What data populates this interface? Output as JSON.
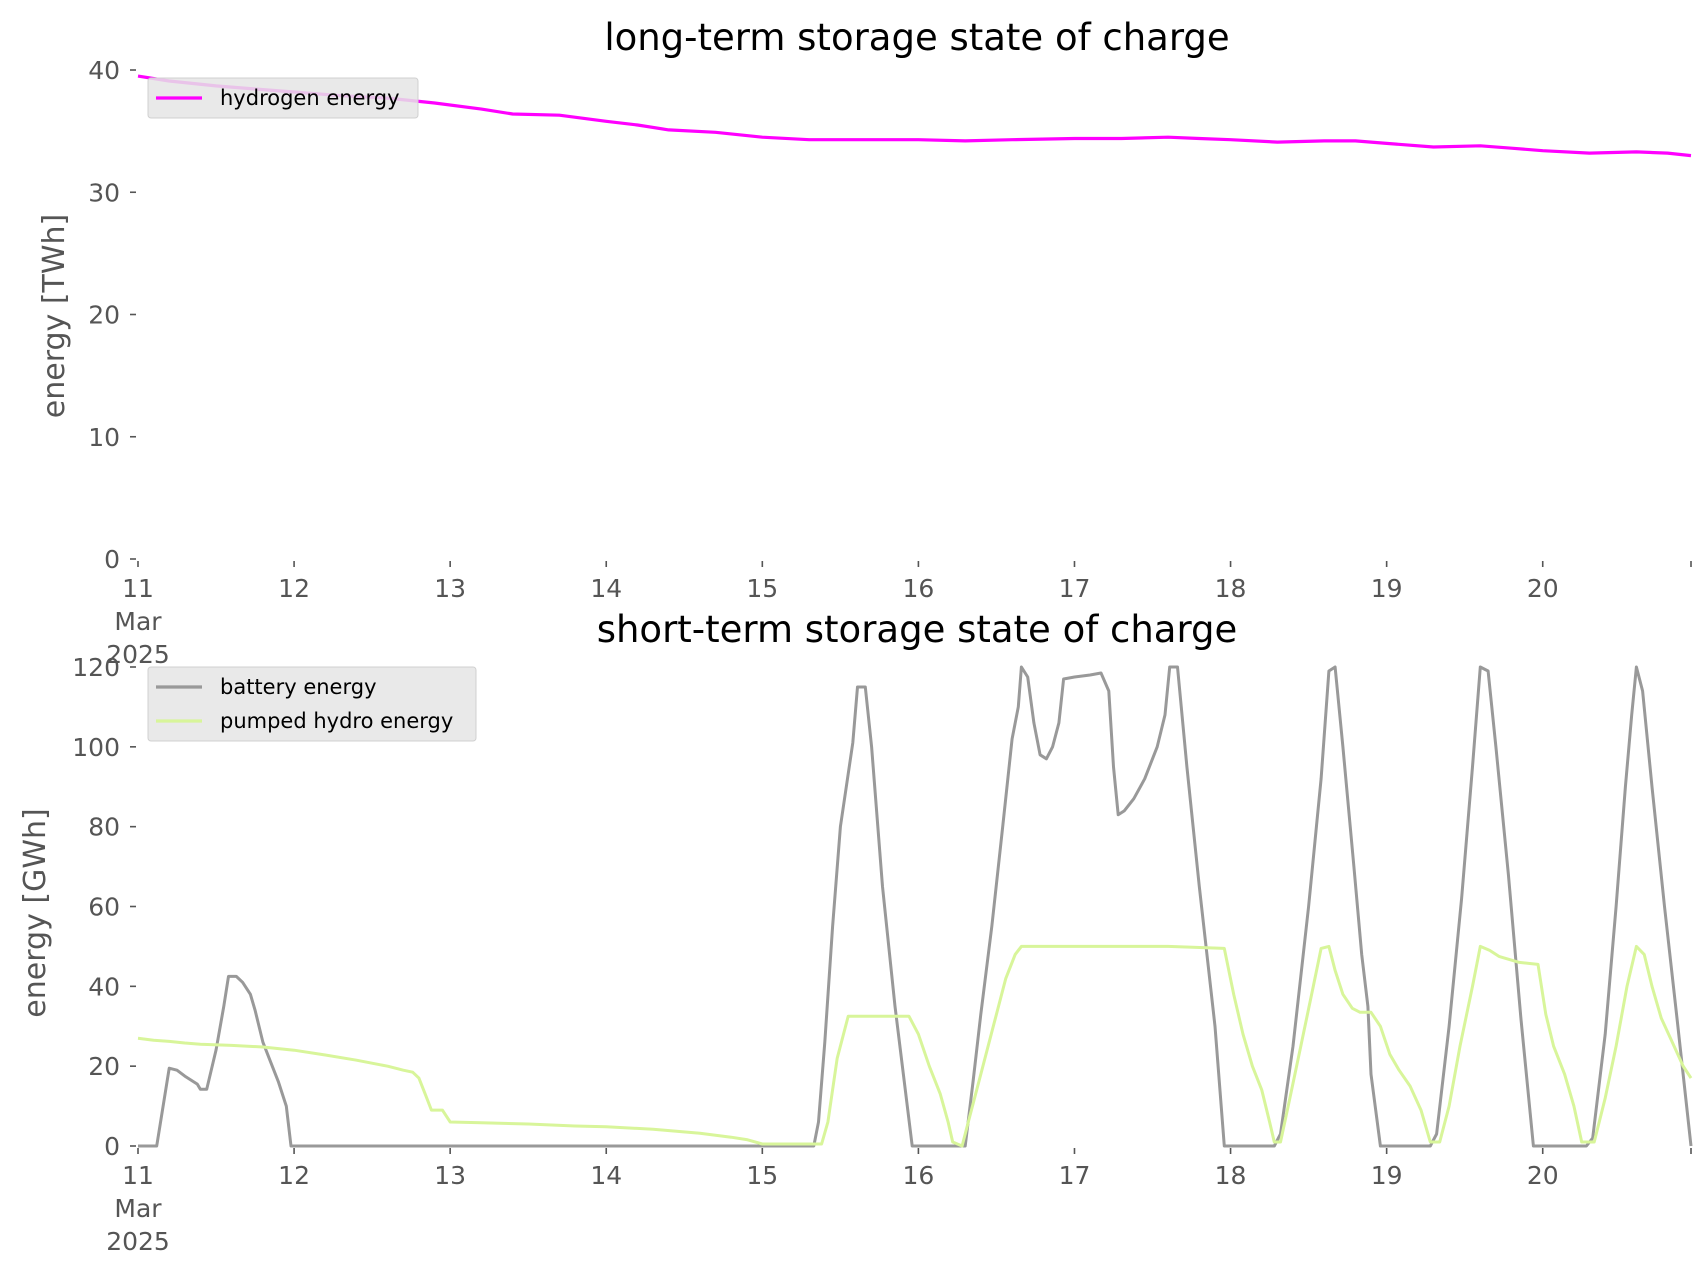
{
  "chart_data": [
    {
      "type": "line",
      "title": "long-term storage state of charge",
      "ylabel": "energy [TWh]",
      "xlabel": "",
      "ylim": [
        0,
        40
      ],
      "yticks": [
        0,
        10,
        20,
        30,
        40
      ],
      "xlim_days": [
        11,
        20.95
      ],
      "xticks": [
        {
          "day": 11,
          "lines": [
            "11",
            "Mar",
            "2025"
          ]
        },
        {
          "day": 12,
          "lines": [
            "12"
          ]
        },
        {
          "day": 13,
          "lines": [
            "13"
          ]
        },
        {
          "day": 14,
          "lines": [
            "14"
          ]
        },
        {
          "day": 15,
          "lines": [
            "15"
          ]
        },
        {
          "day": 16,
          "lines": [
            "16"
          ]
        },
        {
          "day": 17,
          "lines": [
            "17"
          ]
        },
        {
          "day": 18,
          "lines": [
            "18"
          ]
        },
        {
          "day": 19,
          "lines": [
            "19"
          ]
        },
        {
          "day": 20,
          "lines": [
            "20"
          ]
        }
      ],
      "grid": false,
      "legend_position": "top-left",
      "series": [
        {
          "name": "hydrogen energy",
          "color": "#ff00ff",
          "points": [
            [
              11.0,
              39.5
            ],
            [
              11.2,
              39.1
            ],
            [
              11.5,
              38.7
            ],
            [
              11.8,
              38.4
            ],
            [
              12.0,
              38.2
            ],
            [
              12.3,
              37.9
            ],
            [
              12.6,
              37.7
            ],
            [
              12.9,
              37.3
            ],
            [
              13.2,
              36.8
            ],
            [
              13.4,
              36.4
            ],
            [
              13.7,
              36.3
            ],
            [
              14.0,
              35.8
            ],
            [
              14.2,
              35.5
            ],
            [
              14.4,
              35.1
            ],
            [
              14.7,
              34.9
            ],
            [
              15.0,
              34.5
            ],
            [
              15.3,
              34.3
            ],
            [
              15.6,
              34.3
            ],
            [
              16.0,
              34.3
            ],
            [
              16.3,
              34.2
            ],
            [
              16.6,
              34.3
            ],
            [
              17.0,
              34.4
            ],
            [
              17.3,
              34.4
            ],
            [
              17.6,
              34.5
            ],
            [
              17.8,
              34.4
            ],
            [
              18.0,
              34.3
            ],
            [
              18.3,
              34.1
            ],
            [
              18.6,
              34.2
            ],
            [
              18.8,
              34.2
            ],
            [
              19.0,
              34.0
            ],
            [
              19.3,
              33.7
            ],
            [
              19.6,
              33.8
            ],
            [
              19.8,
              33.6
            ],
            [
              20.0,
              33.4
            ],
            [
              20.3,
              33.2
            ],
            [
              20.6,
              33.3
            ],
            [
              20.8,
              33.2
            ],
            [
              20.95,
              33.0
            ]
          ]
        }
      ]
    },
    {
      "type": "line",
      "title": "short-term storage state of charge",
      "ylabel": "energy [GWh]",
      "xlabel": "",
      "ylim": [
        0,
        120
      ],
      "yticks": [
        0,
        20,
        40,
        60,
        80,
        100,
        120
      ],
      "xlim_days": [
        11,
        20.95
      ],
      "xticks": [
        {
          "day": 11,
          "lines": [
            "11",
            "Mar",
            "2025"
          ]
        },
        {
          "day": 12,
          "lines": [
            "12"
          ]
        },
        {
          "day": 13,
          "lines": [
            "13"
          ]
        },
        {
          "day": 14,
          "lines": [
            "14"
          ]
        },
        {
          "day": 15,
          "lines": [
            "15"
          ]
        },
        {
          "day": 16,
          "lines": [
            "16"
          ]
        },
        {
          "day": 17,
          "lines": [
            "17"
          ]
        },
        {
          "day": 18,
          "lines": [
            "18"
          ]
        },
        {
          "day": 19,
          "lines": [
            "19"
          ]
        },
        {
          "day": 20,
          "lines": [
            "20"
          ]
        }
      ],
      "grid": false,
      "legend_position": "top-left",
      "series": [
        {
          "name": "battery energy",
          "color": "#999999",
          "points": [
            [
              11.0,
              0
            ],
            [
              11.12,
              0
            ],
            [
              11.2,
              19.5
            ],
            [
              11.25,
              19
            ],
            [
              11.3,
              17.5
            ],
            [
              11.38,
              15.5
            ],
            [
              11.4,
              14.2
            ],
            [
              11.44,
              14.2
            ],
            [
              11.5,
              24
            ],
            [
              11.55,
              35
            ],
            [
              11.58,
              42.5
            ],
            [
              11.63,
              42.5
            ],
            [
              11.67,
              41
            ],
            [
              11.72,
              38
            ],
            [
              11.75,
              34
            ],
            [
              11.8,
              26
            ],
            [
              11.85,
              21
            ],
            [
              11.9,
              16
            ],
            [
              11.95,
              10
            ],
            [
              11.98,
              0
            ],
            [
              12.0,
              0
            ],
            [
              15.33,
              0
            ],
            [
              15.36,
              6
            ],
            [
              15.4,
              26
            ],
            [
              15.45,
              55
            ],
            [
              15.5,
              80
            ],
            [
              15.58,
              101
            ],
            [
              15.61,
              115
            ],
            [
              15.66,
              115
            ],
            [
              15.7,
              100
            ],
            [
              15.77,
              65
            ],
            [
              15.85,
              35
            ],
            [
              15.96,
              0
            ],
            [
              16.2,
              0
            ],
            [
              16.3,
              0
            ],
            [
              16.35,
              16
            ],
            [
              16.4,
              33
            ],
            [
              16.47,
              55
            ],
            [
              16.54,
              80
            ],
            [
              16.6,
              102
            ],
            [
              16.64,
              110
            ],
            [
              16.66,
              120
            ],
            [
              16.7,
              117.5
            ],
            [
              16.74,
              106
            ],
            [
              16.78,
              98
            ],
            [
              16.82,
              97
            ],
            [
              16.86,
              100
            ],
            [
              16.9,
              106
            ],
            [
              16.93,
              117
            ],
            [
              17.0,
              117.5
            ],
            [
              17.1,
              118
            ],
            [
              17.17,
              118.5
            ],
            [
              17.22,
              114
            ],
            [
              17.25,
              95
            ],
            [
              17.28,
              83
            ],
            [
              17.32,
              84
            ],
            [
              17.38,
              87
            ],
            [
              17.45,
              92
            ],
            [
              17.53,
              100
            ],
            [
              17.58,
              108
            ],
            [
              17.61,
              120
            ],
            [
              17.66,
              120
            ],
            [
              17.72,
              95
            ],
            [
              17.8,
              65
            ],
            [
              17.9,
              30
            ],
            [
              17.96,
              0
            ],
            [
              18.0,
              0
            ],
            [
              18.28,
              0
            ],
            [
              18.32,
              3
            ],
            [
              18.4,
              25
            ],
            [
              18.5,
              60
            ],
            [
              18.58,
              92
            ],
            [
              18.63,
              119
            ],
            [
              18.67,
              120
            ],
            [
              18.72,
              100
            ],
            [
              18.79,
              70
            ],
            [
              18.84,
              48
            ],
            [
              18.88,
              35
            ],
            [
              18.9,
              18
            ],
            [
              18.96,
              0
            ],
            [
              19.0,
              0
            ],
            [
              19.28,
              0
            ],
            [
              19.32,
              3
            ],
            [
              19.4,
              30
            ],
            [
              19.48,
              62
            ],
            [
              19.55,
              95
            ],
            [
              19.6,
              120
            ],
            [
              19.65,
              119
            ],
            [
              19.7,
              100
            ],
            [
              19.78,
              68
            ],
            [
              19.86,
              32
            ],
            [
              19.94,
              0
            ],
            [
              20.0,
              0
            ],
            [
              20.28,
              0
            ],
            [
              20.32,
              2
            ],
            [
              20.4,
              28
            ],
            [
              20.47,
              60
            ],
            [
              20.53,
              90
            ],
            [
              20.57,
              108
            ],
            [
              20.6,
              120
            ],
            [
              20.64,
              114
            ],
            [
              20.7,
              90
            ],
            [
              20.78,
              60
            ],
            [
              20.86,
              32
            ],
            [
              20.95,
              0
            ]
          ]
        },
        {
          "name": "pumped hydro energy",
          "color": "#d8f59a",
          "points": [
            [
              11.0,
              27
            ],
            [
              11.1,
              26.5
            ],
            [
              11.2,
              26.2
            ],
            [
              11.3,
              25.8
            ],
            [
              11.4,
              25.5
            ],
            [
              11.6,
              25.2
            ],
            [
              11.8,
              24.8
            ],
            [
              12.0,
              24
            ],
            [
              12.2,
              22.8
            ],
            [
              12.4,
              21.5
            ],
            [
              12.6,
              20
            ],
            [
              12.7,
              19
            ],
            [
              12.76,
              18.5
            ],
            [
              12.8,
              17
            ],
            [
              12.84,
              13
            ],
            [
              12.88,
              9
            ],
            [
              12.95,
              9
            ],
            [
              13.0,
              6
            ],
            [
              13.2,
              5.8
            ],
            [
              13.5,
              5.5
            ],
            [
              13.8,
              5
            ],
            [
              14.0,
              4.8
            ],
            [
              14.3,
              4.2
            ],
            [
              14.6,
              3.2
            ],
            [
              14.8,
              2.2
            ],
            [
              14.9,
              1.6
            ],
            [
              15.0,
              0.5
            ],
            [
              15.38,
              0.5
            ],
            [
              15.42,
              6
            ],
            [
              15.48,
              22
            ],
            [
              15.55,
              32.5
            ],
            [
              15.72,
              32.5
            ],
            [
              15.94,
              32.5
            ],
            [
              16.0,
              28
            ],
            [
              16.07,
              20
            ],
            [
              16.14,
              13
            ],
            [
              16.19,
              6
            ],
            [
              16.22,
              1
            ],
            [
              16.28,
              0
            ],
            [
              16.32,
              6
            ],
            [
              16.4,
              18
            ],
            [
              16.48,
              30
            ],
            [
              16.56,
              42
            ],
            [
              16.62,
              48
            ],
            [
              16.66,
              50
            ],
            [
              17.0,
              50
            ],
            [
              17.3,
              50
            ],
            [
              17.6,
              50
            ],
            [
              17.96,
              49.5
            ],
            [
              18.02,
              38
            ],
            [
              18.08,
              28
            ],
            [
              18.14,
              20
            ],
            [
              18.2,
              14
            ],
            [
              18.25,
              6
            ],
            [
              18.28,
              1
            ],
            [
              18.32,
              1
            ],
            [
              18.38,
              12
            ],
            [
              18.45,
              25
            ],
            [
              18.53,
              40
            ],
            [
              18.58,
              49.5
            ],
            [
              18.63,
              50
            ],
            [
              18.67,
              44
            ],
            [
              18.72,
              38
            ],
            [
              18.78,
              34.5
            ],
            [
              18.83,
              33.5
            ],
            [
              18.9,
              33.5
            ],
            [
              18.96,
              30
            ],
            [
              19.02,
              23
            ],
            [
              19.08,
              19
            ],
            [
              19.15,
              15
            ],
            [
              19.22,
              9
            ],
            [
              19.28,
              1
            ],
            [
              19.34,
              1
            ],
            [
              19.4,
              10
            ],
            [
              19.47,
              25
            ],
            [
              19.55,
              40
            ],
            [
              19.6,
              50
            ],
            [
              19.66,
              49
            ],
            [
              19.72,
              47.5
            ],
            [
              19.85,
              46
            ],
            [
              19.97,
              45.5
            ],
            [
              20.02,
              33
            ],
            [
              20.07,
              25
            ],
            [
              20.14,
              18
            ],
            [
              20.2,
              10
            ],
            [
              20.25,
              1
            ],
            [
              20.33,
              1
            ],
            [
              20.4,
              12
            ],
            [
              20.47,
              25
            ],
            [
              20.54,
              40
            ],
            [
              20.6,
              50
            ],
            [
              20.65,
              48
            ],
            [
              20.7,
              40
            ],
            [
              20.76,
              32
            ],
            [
              20.83,
              26
            ],
            [
              20.9,
              20
            ],
            [
              20.95,
              17
            ]
          ]
        }
      ]
    }
  ]
}
